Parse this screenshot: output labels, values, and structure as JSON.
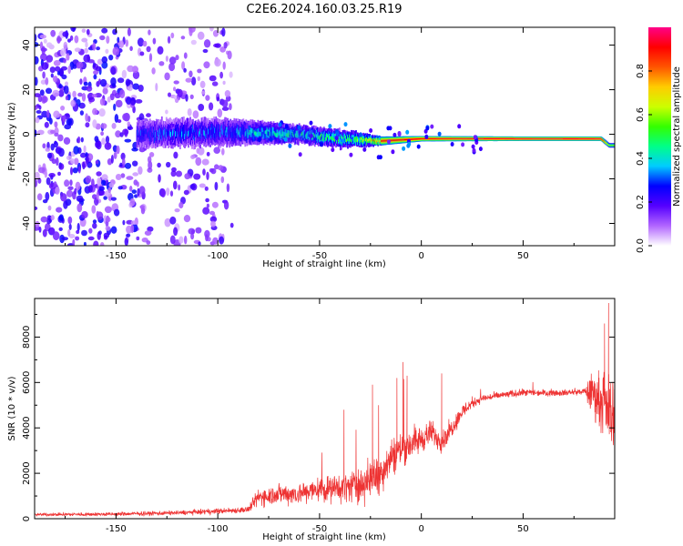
{
  "title": "C2E6.2024.160.03.25.R19",
  "chart_data": [
    {
      "type": "heatmap",
      "xlabel": "Height of straight line (km)",
      "ylabel": "Frequency (Hz)",
      "xlim": [
        -190,
        95
      ],
      "ylim": [
        -50,
        48
      ],
      "xticks": [
        -150,
        -100,
        -50,
        0,
        50
      ],
      "yticks": [
        -40,
        -20,
        0,
        20,
        40
      ],
      "colorbar": {
        "label": "Normalized spectral amplitude",
        "range": [
          0,
          1
        ],
        "ticks": [
          0.0,
          0.2,
          0.4,
          0.6,
          0.8
        ],
        "colors": [
          "#ffffff",
          "#b266ff",
          "#5500ff",
          "#0000ff",
          "#00ccff",
          "#00ff88",
          "#33ff00",
          "#ccff00",
          "#ffcc00",
          "#ff5500",
          "#ff0000",
          "#ff0088"
        ]
      },
      "features": {
        "scatter_region_x": [
          -190,
          -92
        ],
        "scatter_amplitude": 0.22,
        "band_start_x": -140,
        "band_center_hz": [
          [
            -140,
            0
          ],
          [
            -100,
            1
          ],
          [
            -60,
            0
          ],
          [
            -40,
            -2
          ],
          [
            -20,
            -3
          ],
          [
            0,
            -2
          ],
          [
            50,
            -2
          ],
          [
            88,
            -2
          ],
          [
            92,
            -5
          ]
        ],
        "band_half_width_hz": [
          [
            -140,
            6
          ],
          [
            -100,
            6
          ],
          [
            -60,
            4
          ],
          [
            -40,
            4
          ],
          [
            -20,
            2
          ],
          [
            0,
            1.2
          ],
          [
            50,
            1
          ],
          [
            90,
            1
          ]
        ],
        "band_amplitude": [
          [
            -140,
            0.3
          ],
          [
            -100,
            0.35
          ],
          [
            -70,
            0.45
          ],
          [
            -40,
            0.5
          ],
          [
            -25,
            0.7
          ],
          [
            -20,
            0.9
          ],
          [
            0,
            0.92
          ],
          [
            50,
            0.95
          ],
          [
            88,
            0.95
          ],
          [
            92,
            0.6
          ]
        ]
      }
    },
    {
      "type": "line",
      "xlabel": "Height of straight line (km)",
      "ylabel": "SNR (10 * v/v)",
      "xlim": [
        -190,
        95
      ],
      "ylim": [
        0,
        9700
      ],
      "xticks": [
        -150,
        -100,
        -50,
        0,
        50
      ],
      "yticks": [
        0,
        2000,
        4000,
        6000,
        8000
      ],
      "color": "#ee3333",
      "trend": [
        [
          -190,
          180
        ],
        [
          -150,
          200
        ],
        [
          -120,
          260
        ],
        [
          -100,
          330
        ],
        [
          -85,
          400
        ],
        [
          -80,
          950
        ],
        [
          -70,
          1100
        ],
        [
          -60,
          1100
        ],
        [
          -50,
          1300
        ],
        [
          -40,
          1350
        ],
        [
          -30,
          1500
        ],
        [
          -20,
          2000
        ],
        [
          -15,
          2700
        ],
        [
          -10,
          3100
        ],
        [
          0,
          3500
        ],
        [
          5,
          3800
        ],
        [
          10,
          3400
        ],
        [
          15,
          4000
        ],
        [
          20,
          4700
        ],
        [
          25,
          5100
        ],
        [
          30,
          5300
        ],
        [
          40,
          5450
        ],
        [
          50,
          5550
        ],
        [
          60,
          5550
        ],
        [
          70,
          5550
        ],
        [
          80,
          5600
        ],
        [
          85,
          5500
        ],
        [
          90,
          5000
        ],
        [
          95,
          4500
        ]
      ],
      "noise_amplitude": [
        [
          -190,
          100
        ],
        [
          -120,
          150
        ],
        [
          -85,
          200
        ],
        [
          -80,
          600
        ],
        [
          -60,
          700
        ],
        [
          -40,
          900
        ],
        [
          -25,
          1300
        ],
        [
          -10,
          1200
        ],
        [
          0,
          900
        ],
        [
          10,
          700
        ],
        [
          20,
          500
        ],
        [
          30,
          250
        ],
        [
          80,
          200
        ],
        [
          83,
          1200
        ],
        [
          95,
          2500
        ]
      ],
      "spikes": [
        [
          -38,
          4800
        ],
        [
          -24,
          5900
        ],
        [
          -21,
          5000
        ],
        [
          -12,
          6200
        ],
        [
          -9,
          6900
        ],
        [
          -7,
          6300
        ],
        [
          10,
          6400
        ],
        [
          92,
          9500
        ],
        [
          90,
          8600
        ]
      ]
    }
  ]
}
